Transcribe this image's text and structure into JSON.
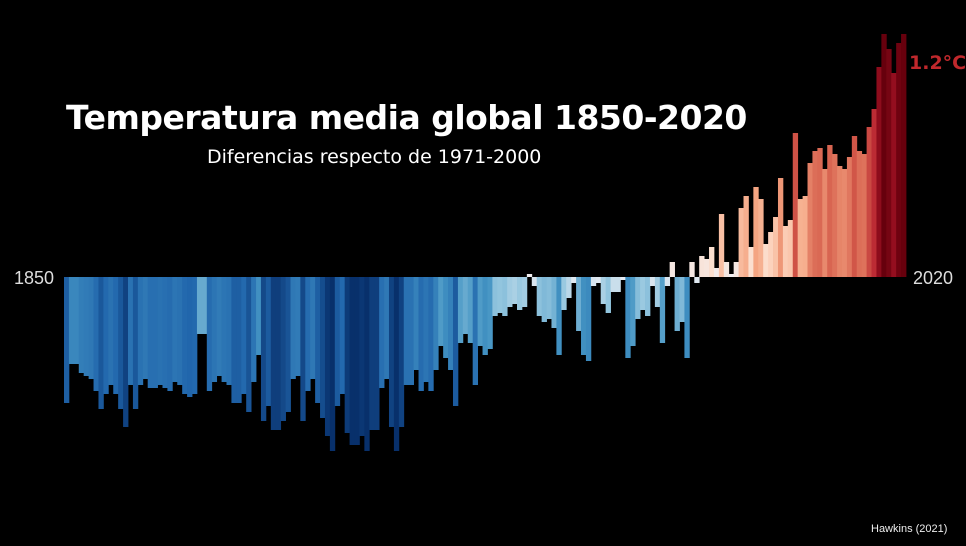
{
  "chart_data": {
    "type": "bar",
    "title": "Temperatura media global 1850-2020",
    "subtitle": "Diferencias respecto de 1971-2000",
    "x_start_label": "1850",
    "x_end_label": "2020",
    "annotation": "1.2°C",
    "credit": "Hawkins (2021)",
    "ylim": [
      -0.7,
      0.75
    ],
    "x": [
      1850,
      1851,
      1852,
      1853,
      1854,
      1855,
      1856,
      1857,
      1858,
      1859,
      1860,
      1861,
      1862,
      1863,
      1864,
      1865,
      1866,
      1867,
      1868,
      1869,
      1870,
      1871,
      1872,
      1873,
      1874,
      1875,
      1876,
      1877,
      1878,
      1879,
      1880,
      1881,
      1882,
      1883,
      1884,
      1885,
      1886,
      1887,
      1888,
      1889,
      1890,
      1891,
      1892,
      1893,
      1894,
      1895,
      1896,
      1897,
      1898,
      1899,
      1900,
      1901,
      1902,
      1903,
      1904,
      1905,
      1906,
      1907,
      1908,
      1909,
      1910,
      1911,
      1912,
      1913,
      1914,
      1915,
      1916,
      1917,
      1918,
      1919,
      1920,
      1921,
      1922,
      1923,
      1924,
      1925,
      1926,
      1927,
      1928,
      1929,
      1930,
      1931,
      1932,
      1933,
      1934,
      1935,
      1936,
      1937,
      1938,
      1939,
      1940,
      1941,
      1942,
      1943,
      1944,
      1945,
      1946,
      1947,
      1948,
      1949,
      1950,
      1951,
      1952,
      1953,
      1954,
      1955,
      1956,
      1957,
      1958,
      1959,
      1960,
      1961,
      1962,
      1963,
      1964,
      1965,
      1966,
      1967,
      1968,
      1969,
      1970,
      1971,
      1972,
      1973,
      1974,
      1975,
      1976,
      1977,
      1978,
      1979,
      1980,
      1981,
      1982,
      1983,
      1984,
      1985,
      1986,
      1987,
      1988,
      1989,
      1990,
      1991,
      1992,
      1993,
      1994,
      1995,
      1996,
      1997,
      1998,
      1999,
      2000,
      2001,
      2002,
      2003,
      2004,
      2005,
      2006,
      2007,
      2008,
      2009,
      2010,
      2011,
      2012,
      2013,
      2014,
      2015,
      2016,
      2017,
      2018,
      2019,
      2020
    ],
    "values": [
      -0.42,
      -0.29,
      -0.29,
      -0.32,
      -0.33,
      -0.34,
      -0.38,
      -0.44,
      -0.39,
      -0.36,
      -0.39,
      -0.44,
      -0.5,
      -0.36,
      -0.44,
      -0.36,
      -0.34,
      -0.37,
      -0.37,
      -0.36,
      -0.37,
      -0.38,
      -0.35,
      -0.36,
      -0.39,
      -0.4,
      -0.39,
      -0.19,
      -0.19,
      -0.38,
      -0.35,
      -0.33,
      -0.35,
      -0.36,
      -0.42,
      -0.42,
      -0.39,
      -0.45,
      -0.35,
      -0.26,
      -0.48,
      -0.43,
      -0.51,
      -0.51,
      -0.48,
      -0.45,
      -0.34,
      -0.33,
      -0.48,
      -0.38,
      -0.34,
      -0.42,
      -0.47,
      -0.53,
      -0.58,
      -0.43,
      -0.39,
      -0.52,
      -0.56,
      -0.56,
      -0.53,
      -0.58,
      -0.51,
      -0.51,
      -0.37,
      -0.34,
      -0.5,
      -0.58,
      -0.5,
      -0.36,
      -0.36,
      -0.31,
      -0.38,
      -0.35,
      -0.38,
      -0.31,
      -0.23,
      -0.27,
      -0.31,
      -0.43,
      -0.22,
      -0.19,
      -0.22,
      -0.36,
      -0.23,
      -0.26,
      -0.24,
      -0.13,
      -0.12,
      -0.13,
      -0.1,
      -0.09,
      -0.11,
      -0.1,
      0.01,
      -0.03,
      -0.13,
      -0.15,
      -0.14,
      -0.17,
      -0.26,
      -0.11,
      -0.07,
      -0.02,
      -0.18,
      -0.26,
      -0.28,
      -0.03,
      -0.02,
      -0.09,
      -0.12,
      -0.05,
      -0.05,
      -0.01,
      -0.27,
      -0.23,
      -0.14,
      -0.11,
      -0.13,
      -0.03,
      -0.1,
      -0.22,
      -0.03,
      0.05,
      -0.18,
      -0.15,
      -0.27,
      0.05,
      -0.02,
      0.07,
      0.06,
      0.1,
      0.03,
      0.21,
      0.05,
      0.01,
      0.05,
      0.23,
      0.27,
      0.1,
      0.3,
      0.26,
      0.11,
      0.15,
      0.2,
      0.33,
      0.17,
      0.19,
      0.48,
      0.26,
      0.27,
      0.38,
      0.42,
      0.43,
      0.36,
      0.44,
      0.41,
      0.37,
      0.36,
      0.4,
      0.47,
      0.42,
      0.41,
      0.5,
      0.56,
      0.7,
      0.81,
      0.76,
      0.68,
      0.78,
      0.81
    ]
  }
}
